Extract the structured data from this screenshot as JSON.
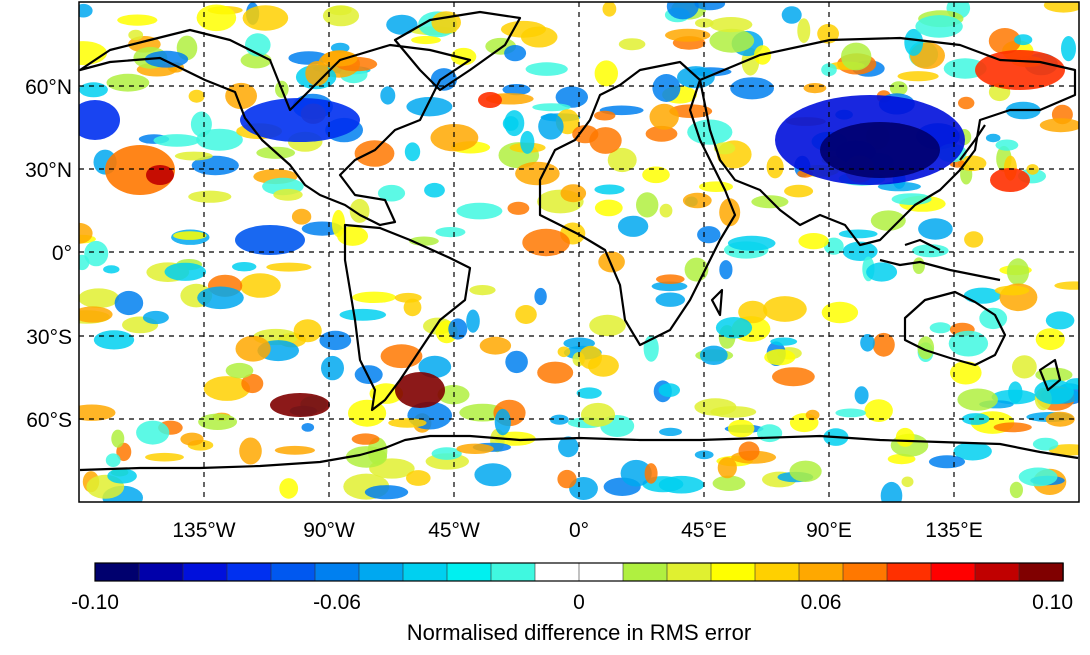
{
  "map": {
    "y_ticks": [
      "60°N",
      "30°N",
      "0°",
      "30°S",
      "60°S"
    ],
    "x_ticks": [
      "135°W",
      "90°W",
      "45°W",
      "0°",
      "45°E",
      "90°E",
      "135°E"
    ]
  },
  "colorbar": {
    "title": "Normalised difference in RMS error",
    "tick_labels": [
      "-0.10",
      "-0.06",
      "0",
      "0.06",
      "0.10"
    ],
    "levels": 20,
    "colors": [
      "#00006e",
      "#0000aa",
      "#0010dc",
      "#0030f0",
      "#0058f0",
      "#0080f0",
      "#00a8f0",
      "#00d0f0",
      "#00f0f0",
      "#40f8e0",
      "#ffffff",
      "#ffffff",
      "#b0f040",
      "#e0f030",
      "#ffff00",
      "#ffd000",
      "#ffa800",
      "#ff7800",
      "#ff3000",
      "#ff0000",
      "#c00000",
      "#800000"
    ]
  }
}
